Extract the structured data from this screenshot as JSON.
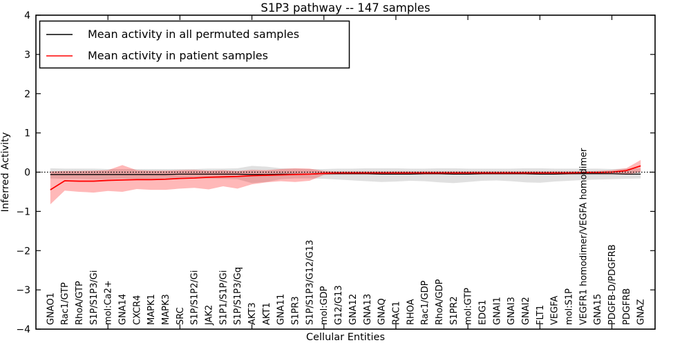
{
  "chart_data": {
    "type": "line",
    "title": "S1P3 pathway -- 147 samples",
    "xlabel": "Cellular Entities",
    "ylabel": "Inferred Activity",
    "ylim": [
      -4,
      4
    ],
    "ytick_labels": [
      "4",
      "3",
      "2",
      "1",
      "0",
      "−1",
      "−2",
      "−3",
      "−4"
    ],
    "yticks": [
      4,
      3,
      2,
      1,
      0,
      -1,
      -2,
      -3,
      -4
    ],
    "x_major_ticks": [
      5,
      10,
      15,
      20,
      25,
      30,
      35,
      40
    ],
    "grid": false,
    "legend_position": "upper left",
    "zero_line": {
      "style": "dotted",
      "color": "#000000",
      "y": 0
    },
    "categories": [
      "GNAO1",
      "Rac1/GTP",
      "RhoA/GTP",
      "S1P/S1P3/Gi",
      "mol:Ca2+",
      "GNA14",
      "CXCR4",
      "MAPK1",
      "MAPK3",
      "SRC",
      "S1P/S1P2/Gi",
      "JAK2",
      "S1P1/S1P/Gi",
      "S1P/S1P3/Gq",
      "AKT3",
      "AKT1",
      "GNA11",
      "S1PR3",
      "S1P/S1P3/G12/G13",
      "mol:GDP",
      "G12/G13",
      "GNA12",
      "GNA13",
      "GNAQ",
      "RAC1",
      "RHOA",
      "Rac1/GDP",
      "RhoA/GDP",
      "S1PR2",
      "mol:GTP",
      "EDG1",
      "GNAI1",
      "GNAI3",
      "GNAI2",
      "FLT1",
      "VEGFA",
      "mol:S1P",
      "VEGFR1 homodimer/VEGFA homodimer",
      "GNA15",
      "PDGFB-D/PDGFRB",
      "PDGFRB",
      "GNAZ"
    ],
    "series": [
      {
        "name": "Mean activity in all permuted samples",
        "color": "#000000",
        "band_color": "rgba(0,0,0,0.12)",
        "values": [
          -0.06,
          -0.06,
          -0.06,
          -0.06,
          -0.06,
          -0.06,
          -0.06,
          -0.06,
          -0.06,
          -0.05,
          -0.05,
          -0.05,
          -0.05,
          -0.05,
          -0.06,
          -0.06,
          -0.05,
          -0.05,
          -0.05,
          -0.04,
          -0.04,
          -0.04,
          -0.04,
          -0.05,
          -0.05,
          -0.05,
          -0.04,
          -0.04,
          -0.05,
          -0.05,
          -0.04,
          -0.04,
          -0.04,
          -0.04,
          -0.05,
          -0.05,
          -0.04,
          -0.04,
          -0.04,
          -0.04,
          -0.05,
          -0.05
        ],
        "band_low": [
          -0.16,
          -0.17,
          -0.17,
          -0.18,
          -0.18,
          -0.17,
          -0.17,
          -0.17,
          -0.16,
          -0.16,
          -0.16,
          -0.16,
          -0.17,
          -0.18,
          -0.28,
          -0.25,
          -0.18,
          -0.16,
          -0.16,
          -0.17,
          -0.19,
          -0.21,
          -0.23,
          -0.25,
          -0.24,
          -0.22,
          -0.23,
          -0.26,
          -0.28,
          -0.25,
          -0.22,
          -0.21,
          -0.23,
          -0.26,
          -0.27,
          -0.24,
          -0.22,
          -0.2,
          -0.19,
          -0.18,
          -0.17,
          -0.16
        ],
        "band_high": [
          0.1,
          0.09,
          0.09,
          0.09,
          0.08,
          0.08,
          0.08,
          0.08,
          0.08,
          0.08,
          0.08,
          0.09,
          0.09,
          0.1,
          0.16,
          0.14,
          0.1,
          0.09,
          0.08,
          0.08,
          0.09,
          0.09,
          0.1,
          0.1,
          0.1,
          0.09,
          0.09,
          0.1,
          0.1,
          0.09,
          0.09,
          0.09,
          0.09,
          0.1,
          0.1,
          0.09,
          0.09,
          0.09,
          0.09,
          0.08,
          0.09,
          0.1
        ]
      },
      {
        "name": "Mean activity in patient samples",
        "color": "#ff0000",
        "band_color": "rgba(255,0,0,0.28)",
        "values": [
          -0.45,
          -0.22,
          -0.23,
          -0.23,
          -0.21,
          -0.2,
          -0.19,
          -0.19,
          -0.18,
          -0.16,
          -0.15,
          -0.13,
          -0.12,
          -0.11,
          -0.09,
          -0.08,
          -0.07,
          -0.06,
          -0.05,
          -0.03,
          -0.02,
          -0.02,
          -0.02,
          -0.02,
          -0.02,
          -0.02,
          -0.02,
          -0.02,
          -0.02,
          -0.02,
          -0.02,
          -0.02,
          -0.02,
          -0.02,
          -0.02,
          -0.02,
          -0.02,
          -0.01,
          -0.01,
          0.0,
          0.04,
          0.16
        ],
        "band_low": [
          -0.82,
          -0.47,
          -0.5,
          -0.52,
          -0.48,
          -0.5,
          -0.43,
          -0.45,
          -0.45,
          -0.42,
          -0.4,
          -0.44,
          -0.36,
          -0.42,
          -0.31,
          -0.26,
          -0.23,
          -0.25,
          -0.22,
          -0.07,
          -0.06,
          -0.06,
          -0.06,
          -0.06,
          -0.06,
          -0.06,
          -0.06,
          -0.06,
          -0.06,
          -0.06,
          -0.06,
          -0.06,
          -0.06,
          -0.06,
          -0.06,
          -0.06,
          -0.06,
          -0.05,
          -0.05,
          -0.05,
          -0.06,
          0.0
        ],
        "band_high": [
          0.02,
          0.03,
          0.03,
          0.04,
          0.05,
          0.18,
          0.05,
          0.04,
          0.04,
          0.05,
          0.06,
          0.04,
          0.05,
          0.03,
          0.06,
          0.05,
          0.08,
          0.1,
          0.09,
          0.03,
          0.02,
          0.02,
          0.02,
          0.02,
          0.02,
          0.02,
          0.02,
          0.02,
          0.02,
          0.02,
          0.02,
          0.02,
          0.02,
          0.02,
          0.02,
          0.02,
          0.02,
          0.02,
          0.03,
          0.05,
          0.1,
          0.31
        ]
      }
    ]
  }
}
